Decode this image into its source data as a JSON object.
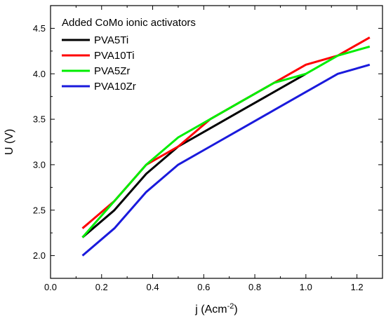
{
  "chart_data": {
    "type": "line",
    "legend_title": "Added CoMo ionic activators",
    "legend_position": "top-left",
    "xlabel_main": "j (Acm",
    "xlabel_sup": "-2",
    "xlabel_close": ")",
    "ylabel": "U (V)",
    "xlim": [
      0.0,
      1.3
    ],
    "ylim": [
      1.75,
      4.75
    ],
    "x_ticks": [
      0.0,
      0.2,
      0.4,
      0.6,
      0.8,
      1.0,
      1.2
    ],
    "x_tick_labels": [
      "0.0",
      "0.2",
      "0.4",
      "0.6",
      "0.8",
      "1.0",
      "1.2"
    ],
    "y_ticks": [
      2.0,
      2.5,
      3.0,
      3.5,
      4.0,
      4.5
    ],
    "y_tick_labels": [
      "2.0",
      "2.5",
      "3.0",
      "3.5",
      "4.0",
      "4.5"
    ],
    "grid": false,
    "series": [
      {
        "name": "PVA5Ti",
        "color": "#000000",
        "x": [
          0.125,
          0.25,
          0.375,
          0.5,
          0.625,
          0.75,
          0.875,
          1.0
        ],
        "y": [
          2.2,
          2.5,
          2.9,
          3.2,
          3.4,
          3.6,
          3.8,
          4.0
        ]
      },
      {
        "name": "PVA10Ti",
        "color": "#ff0000",
        "x": [
          0.125,
          0.25,
          0.375,
          0.5,
          0.625,
          0.75,
          0.875,
          1.0,
          1.125,
          1.25
        ],
        "y": [
          2.3,
          2.6,
          3.0,
          3.2,
          3.5,
          3.7,
          3.9,
          4.1,
          4.2,
          4.4
        ]
      },
      {
        "name": "PVA5Zr",
        "color": "#00ee00",
        "x": [
          0.125,
          0.25,
          0.375,
          0.5,
          0.625,
          0.75,
          0.875,
          1.0,
          1.125,
          1.25
        ],
        "y": [
          2.2,
          2.6,
          3.0,
          3.3,
          3.5,
          3.7,
          3.9,
          4.0,
          4.2,
          4.3
        ]
      },
      {
        "name": "PVA10Zr",
        "color": "#1a1adc",
        "x": [
          0.125,
          0.25,
          0.375,
          0.5,
          0.625,
          0.75,
          0.875,
          1.0,
          1.125,
          1.25
        ],
        "y": [
          2.0,
          2.3,
          2.7,
          3.0,
          3.2,
          3.4,
          3.6,
          3.8,
          4.0,
          4.1
        ]
      }
    ]
  }
}
